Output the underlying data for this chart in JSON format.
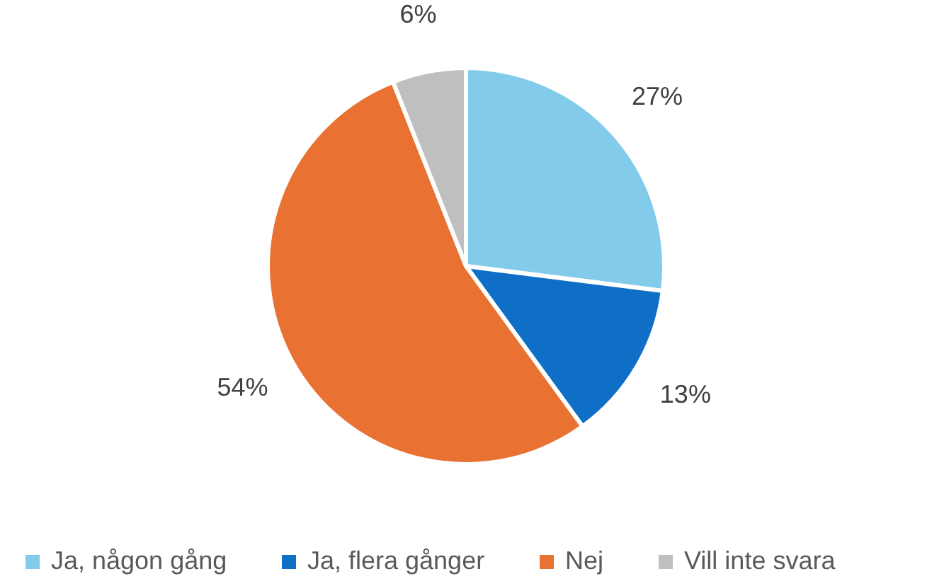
{
  "chart_data": {
    "type": "pie",
    "categories": [
      "Ja, någon gång",
      "Ja, flera gånger",
      "Nej",
      "Vill inte svara"
    ],
    "values": [
      27,
      13,
      54,
      6
    ],
    "colors": [
      "#83cbeb",
      "#0f6fc6",
      "#e97132",
      "#bfbfbf"
    ],
    "value_labels": [
      "27%",
      "13%",
      "54%",
      "6%"
    ],
    "legend": "bottom"
  }
}
